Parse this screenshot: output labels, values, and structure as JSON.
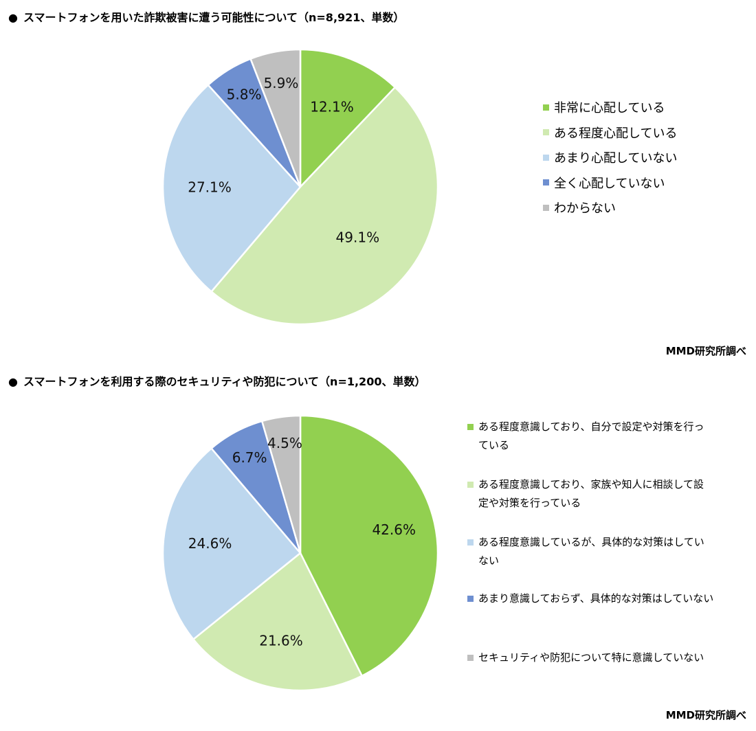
{
  "chart_data": [
    {
      "type": "pie",
      "title": "スマートフォンを用いた詐欺被害に遭う可能性について（n=8,921、単数）",
      "categories": [
        "非常に心配している",
        "ある程度心配している",
        "あまり心配していない",
        "全く心配していない",
        "わからない"
      ],
      "values": [
        12.1,
        49.1,
        27.1,
        5.8,
        5.9
      ],
      "value_labels": [
        "12.1%",
        "49.1%",
        "27.1%",
        "5.8%",
        "5.9%"
      ],
      "colors": [
        "#92d050",
        "#d0eab1",
        "#bdd7ee",
        "#6e8fd0",
        "#bfbfbf"
      ],
      "legend_position": "right",
      "source": "MMD研究所調べ"
    },
    {
      "type": "pie",
      "title": "スマートフォンを利用する際のセキュリティや防犯について（n=1,200、単数）",
      "categories": [
        "ある程度意識しており、自分で設定や対策を行っている",
        "ある程度意識しており、家族や知人に相談して設定や対策を行っている",
        "ある程度意識しているが、具体的な対策はしていない",
        "あまり意識しておらず、具体的な対策はしていない",
        "セキュリティや防犯について特に意識していない"
      ],
      "legend_lines": [
        [
          "ある程度意識しており、自分で設定や対策を行っ",
          "ている"
        ],
        [
          "ある程度意識しており、家族や知人に相談して設",
          "定や対策を行っている"
        ],
        [
          "ある程度意識しているが、具体的な対策はしてい",
          "ない"
        ],
        [
          "あまり意識しておらず、具体的な対策はしていない"
        ],
        [
          "セキュリティや防犯について特に意識していない"
        ]
      ],
      "values": [
        42.6,
        21.6,
        24.6,
        6.7,
        4.5
      ],
      "value_labels": [
        "42.6%",
        "21.6%",
        "24.6%",
        "6.7%",
        "4.5%"
      ],
      "colors": [
        "#92d050",
        "#d0eab1",
        "#bdd7ee",
        "#6e8fd0",
        "#bfbfbf"
      ],
      "legend_position": "right",
      "source": "MMD研究所調べ"
    }
  ],
  "bullet": "●"
}
